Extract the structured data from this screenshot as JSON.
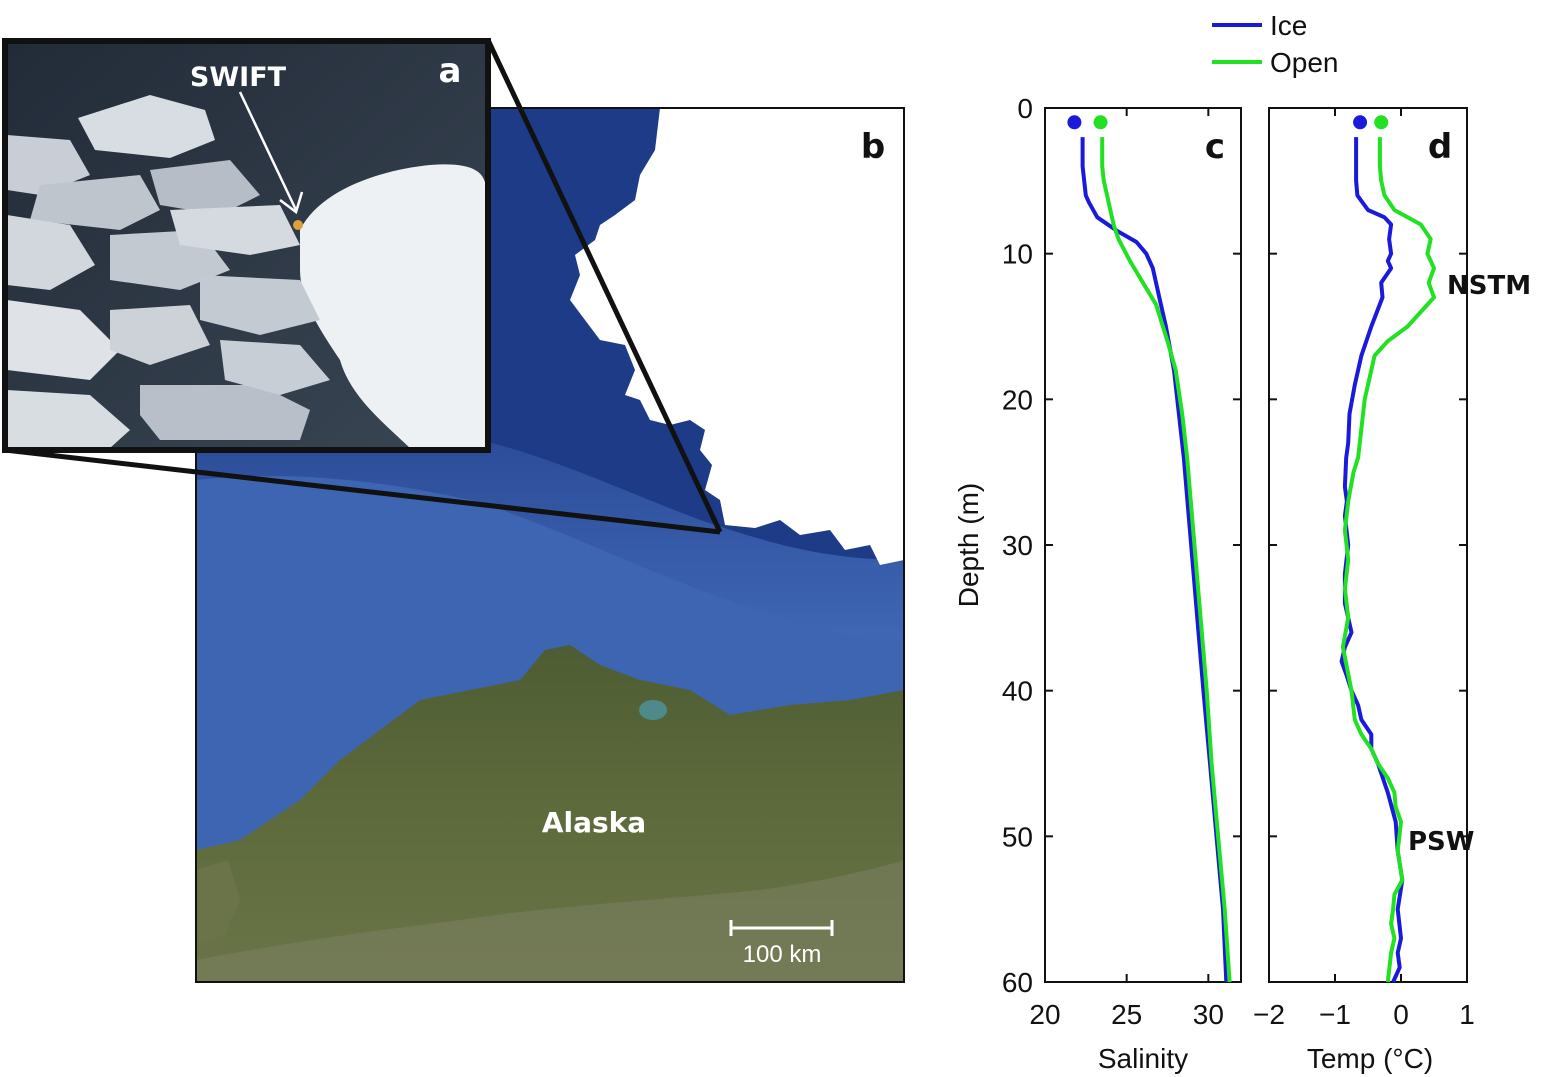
{
  "colors": {
    "ice": "#1a1adb",
    "open": "#22e022",
    "ocean": "#3b63b0",
    "deep_ocean": "#1f3f8c",
    "sea_ice": "#ffffff",
    "land": "#5b6a3a",
    "photo_water": "#2a3342"
  },
  "panels": {
    "a": {
      "letter": "a",
      "label": "SWIFT"
    },
    "b": {
      "letter": "b",
      "label": "Alaska",
      "scale_label": "100 km"
    }
  },
  "chart_data": [
    {
      "panel": "c",
      "type": "line",
      "xlabel": "Salinity",
      "ylabel": "Depth (m)",
      "xlim": [
        20,
        32
      ],
      "ylim": [
        60,
        0
      ],
      "xticks": [
        "20",
        "25",
        "30"
      ],
      "yticks": [
        "0",
        "10",
        "20",
        "30",
        "40",
        "50",
        "60"
      ],
      "grid": false,
      "legend": "top",
      "series": [
        {
          "name": "Ice",
          "surface": {
            "x": 21.8,
            "y": 0.5
          },
          "x": [
            22.3,
            22.3,
            22.4,
            22.5,
            22.7,
            23.2,
            24.5,
            25.6,
            26.2,
            26.6,
            27.0,
            27.4,
            27.9,
            28.2,
            28.5,
            28.8,
            29.1,
            29.4,
            29.7,
            30.1,
            30.5,
            30.9,
            31.1
          ],
          "y": [
            2,
            4,
            5,
            6,
            6.5,
            7.5,
            8.5,
            9.2,
            10,
            11,
            13,
            15,
            18,
            21,
            24,
            28,
            32,
            36,
            40,
            45,
            50,
            55,
            60
          ]
        },
        {
          "name": "Open",
          "surface": {
            "x": 23.4,
            "y": 0.5
          },
          "x": [
            23.5,
            23.5,
            23.6,
            23.8,
            24.0,
            24.2,
            24.5,
            25.2,
            26.0,
            26.8,
            27.5,
            28.0,
            28.4,
            28.7,
            29.0,
            29.3,
            29.6,
            29.9,
            30.2,
            30.6,
            31.0,
            31.3
          ],
          "y": [
            2,
            4,
            5,
            6,
            7,
            8,
            9,
            10.5,
            12,
            13.5,
            16,
            18,
            21,
            24,
            28,
            32,
            36,
            40,
            45,
            50,
            55,
            60
          ]
        }
      ]
    },
    {
      "panel": "d",
      "type": "line",
      "xlabel": "Temp (°C)",
      "xlim": [
        -2,
        1
      ],
      "ylim": [
        60,
        0
      ],
      "xticks": [
        "−2",
        "−1",
        "0",
        "1"
      ],
      "grid": false,
      "annotations": [
        {
          "text": "NSTM",
          "depth": 12
        },
        {
          "text": "PSW",
          "depth": 50
        }
      ],
      "series": [
        {
          "name": "Ice",
          "surface": {
            "x": -0.62,
            "y": 0.5
          },
          "x": [
            -0.68,
            -0.68,
            -0.68,
            -0.66,
            -0.5,
            -0.25,
            -0.15,
            -0.18,
            -0.15,
            -0.2,
            -0.15,
            -0.3,
            -0.28,
            -0.45,
            -0.6,
            -0.7,
            -0.78,
            -0.8,
            -0.83,
            -0.85,
            -0.82,
            -0.85,
            -0.8,
            -0.85,
            -0.85,
            -0.8,
            -0.75,
            -0.85,
            -0.9,
            -0.82,
            -0.75,
            -0.65,
            -0.6,
            -0.45,
            -0.45,
            -0.35,
            -0.2,
            -0.08,
            -0.05,
            0.02,
            -0.05,
            0.0,
            -0.05,
            -0.02,
            -0.12
          ],
          "y": [
            2,
            4,
            5,
            6,
            7,
            7.5,
            8,
            9,
            10,
            10.5,
            11,
            12,
            13,
            15,
            17,
            19,
            21,
            23,
            24,
            26,
            27,
            28,
            30,
            32,
            34,
            35,
            36,
            37,
            38,
            39,
            40,
            41,
            42,
            43,
            44,
            45,
            47,
            49,
            51,
            53,
            55,
            57,
            58,
            59,
            60
          ]
        },
        {
          "name": "Open",
          "surface": {
            "x": -0.3,
            "y": 0.5
          },
          "x": [
            -0.32,
            -0.32,
            -0.3,
            -0.25,
            -0.1,
            0.3,
            0.45,
            0.4,
            0.5,
            0.42,
            0.5,
            0.3,
            0.1,
            -0.2,
            -0.4,
            -0.45,
            -0.55,
            -0.6,
            -0.65,
            -0.72,
            -0.8,
            -0.85,
            -0.8,
            -0.85,
            -0.8,
            -0.88,
            -0.75,
            -0.7,
            -0.6,
            -0.45,
            -0.35,
            -0.2,
            -0.1,
            -0.08,
            0.0,
            -0.05,
            0.02,
            -0.1,
            -0.12,
            -0.15,
            -0.1,
            -0.15,
            -0.2
          ],
          "y": [
            2,
            4,
            5,
            6,
            7,
            8,
            9,
            10,
            11,
            12,
            13,
            14,
            15,
            16,
            17,
            18,
            20,
            22,
            24,
            25,
            27,
            29,
            31,
            33,
            35,
            37,
            40,
            42,
            43,
            44,
            45,
            46,
            47,
            48,
            49,
            51,
            53,
            54,
            55,
            56,
            57,
            58,
            60
          ]
        }
      ]
    }
  ]
}
